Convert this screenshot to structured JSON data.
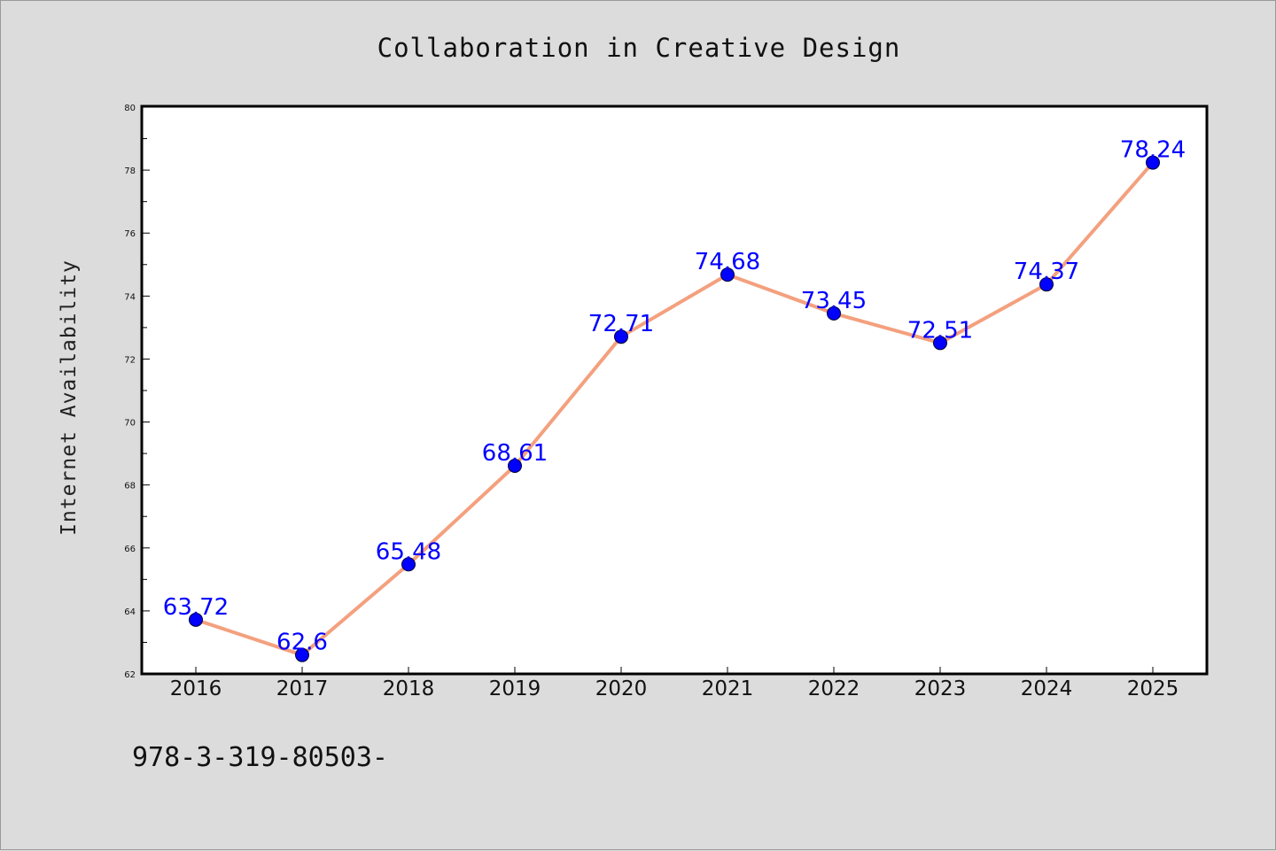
{
  "chart_data": {
    "type": "line",
    "title": "Collaboration in Creative Design",
    "xlabel": "",
    "ylabel": "Internet Availability",
    "categories": [
      "2016",
      "2017",
      "2018",
      "2019",
      "2020",
      "2021",
      "2022",
      "2023",
      "2024",
      "2025"
    ],
    "series": [
      {
        "values": [
          63.72,
          62.6,
          65.48,
          68.61,
          72.71,
          74.68,
          73.45,
          72.51,
          74.37,
          78.24
        ]
      }
    ],
    "ylim": [
      62,
      80
    ],
    "yticks": [
      "62",
      "64",
      "66",
      "68",
      "70",
      "72",
      "74",
      "76",
      "78",
      "80"
    ],
    "data_labels": [
      "63.72",
      "62.6",
      "65.48",
      "68.61",
      "72.71",
      "74.68",
      "73.45",
      "72.51",
      "74.37",
      "78.24"
    ],
    "grid": false,
    "colors": {
      "line": "#f4a07e",
      "marker": "#0000ff",
      "label": "#0000ff",
      "background": "#dcdcdc",
      "plot_bg": "#ffffff"
    }
  },
  "footer_text": "978-3-319-80503-"
}
